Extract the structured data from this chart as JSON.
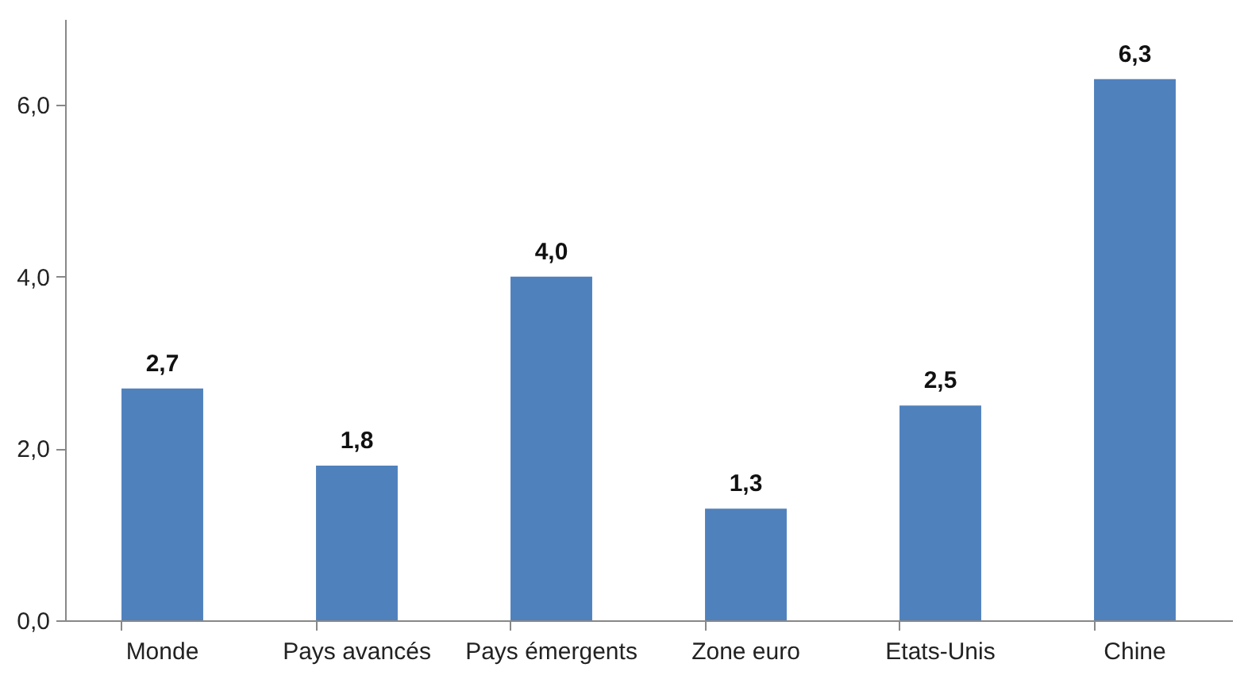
{
  "chart_data": {
    "type": "bar",
    "categories": [
      "Monde",
      "Pays avancés",
      "Pays émergents",
      "Zone euro",
      "Etats-Unis",
      "Chine"
    ],
    "values": [
      2.7,
      1.8,
      4.0,
      1.3,
      2.5,
      6.3
    ],
    "value_labels": [
      "2,7",
      "1,8",
      "4,0",
      "1,3",
      "2,5",
      "6,3"
    ],
    "color": "#4f81bd",
    "ylim": [
      0,
      7
    ],
    "yticks": [
      {
        "value": 0,
        "label": "0,0"
      },
      {
        "value": 2,
        "label": "2,0"
      },
      {
        "value": 4,
        "label": "4,0"
      },
      {
        "value": 6,
        "label": "6,0"
      }
    ],
    "grid": false
  }
}
